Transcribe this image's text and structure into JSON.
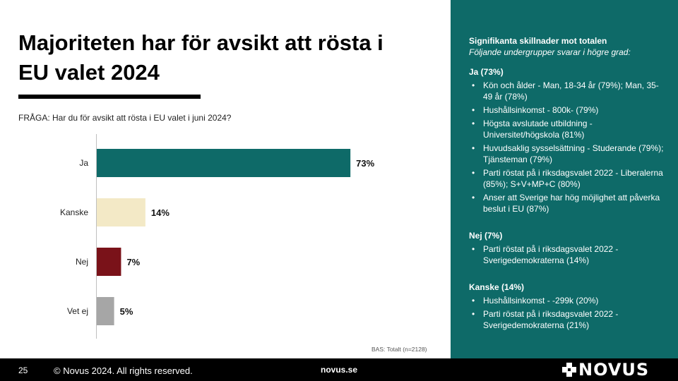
{
  "slide": {
    "title": "Majoriteten har för avsikt att rösta i EU valet 2024",
    "question": "FRÅGA: Har du för avsikt att rösta i EU valet i juni 2024?",
    "base": "BAS: Totalt (n=2128)"
  },
  "chart_data": {
    "type": "bar",
    "orientation": "horizontal",
    "categories": [
      "Ja",
      "Kanske",
      "Nej",
      "Vet ej"
    ],
    "values": [
      73,
      14,
      7,
      5
    ],
    "value_labels": [
      "73%",
      "14%",
      "7%",
      "5%"
    ],
    "colors": [
      "#0e6a68",
      "#f3e9c6",
      "#7a1219",
      "#a6a6a6"
    ],
    "xlim": [
      0,
      100
    ],
    "grid": false,
    "legend": "none"
  },
  "panel": {
    "heading": "Signifikanta skillnader mot totalen",
    "subheading": "Följande undergrupper svarar i högre grad:",
    "groups": [
      {
        "title": "Ja (73%)",
        "items": [
          "Kön och ålder - Man, 18-34 år (79%); Man, 35-49 år (78%)",
          "Hushållsinkomst - 800k- (79%)",
          "Högsta avslutade utbildning - Universitet/högskola (81%)",
          "Huvudsaklig sysselsättning - Studerande (79%); Tjänsteman (79%)",
          "Parti röstat på i riksdagsvalet 2022 - Liberalerna (85%); S+V+MP+C (80%)",
          "Anser att Sverige har hög möjlighet att påverka beslut i EU (87%)"
        ]
      },
      {
        "title": "Nej (7%)",
        "items": [
          "Parti röstat på i riksdagsvalet 2022 - Sverigedemokraterna (14%)"
        ]
      },
      {
        "title": "Kanske (14%)",
        "items": [
          "Hushållsinkomst - -299k (20%)",
          "Parti röstat på i riksdagsvalet 2022 - Sverigedemokraterna (21%)"
        ]
      }
    ]
  },
  "footer": {
    "page": "25",
    "copyright": "© Novus 2024. All rights reserved.",
    "site": "novus.se",
    "logo_text": "NOVUS",
    "logo_icon": "novus-logo-icon"
  }
}
